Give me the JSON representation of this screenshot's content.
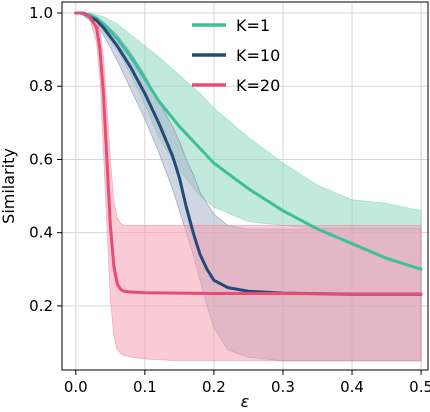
{
  "chart_data": {
    "type": "line",
    "xlabel": "ε",
    "ylabel": "Similarity",
    "xlim": [
      -0.02,
      0.51
    ],
    "ylim": [
      0.025,
      1.03
    ],
    "xticks": [
      0.0,
      0.1,
      0.2,
      0.3,
      0.4,
      0.5
    ],
    "xtick_labels": [
      "0.0",
      "0.1",
      "0.2",
      "0.3",
      "0.4",
      "0.5"
    ],
    "yticks": [
      0.2,
      0.4,
      0.6,
      0.8,
      1.0
    ],
    "ytick_labels": [
      "0.2",
      "0.4",
      "0.6",
      "0.8",
      "1.0"
    ],
    "grid": true,
    "legend_position": "top-center",
    "series": [
      {
        "name": "K=1",
        "color": "#3dbf9a",
        "band_color": "#8fd9bf",
        "x": [
          0.0,
          0.01,
          0.02,
          0.03,
          0.04,
          0.06,
          0.08,
          0.1,
          0.12,
          0.15,
          0.18,
          0.2,
          0.25,
          0.3,
          0.35,
          0.4,
          0.45,
          0.5
        ],
        "y": [
          1.0,
          1.0,
          0.995,
          0.985,
          0.97,
          0.93,
          0.88,
          0.82,
          0.76,
          0.69,
          0.63,
          0.59,
          0.52,
          0.46,
          0.41,
          0.37,
          0.33,
          0.3
        ],
        "upper": [
          1.0,
          1.0,
          1.0,
          0.995,
          0.99,
          0.97,
          0.94,
          0.91,
          0.88,
          0.83,
          0.78,
          0.74,
          0.66,
          0.59,
          0.53,
          0.49,
          0.48,
          0.46
        ],
        "lower": [
          1.0,
          0.995,
          0.985,
          0.97,
          0.95,
          0.9,
          0.83,
          0.75,
          0.66,
          0.57,
          0.5,
          0.47,
          0.43,
          0.42,
          0.41,
          0.41,
          0.41,
          0.41
        ]
      },
      {
        "name": "K=10",
        "color": "#244a7a",
        "band_color": "#a7b3c8",
        "x": [
          0.0,
          0.01,
          0.02,
          0.03,
          0.04,
          0.06,
          0.08,
          0.1,
          0.12,
          0.14,
          0.15,
          0.16,
          0.17,
          0.18,
          0.19,
          0.2,
          0.22,
          0.25,
          0.3,
          0.4,
          0.5
        ],
        "y": [
          1.0,
          1.0,
          0.99,
          0.98,
          0.96,
          0.91,
          0.85,
          0.78,
          0.7,
          0.61,
          0.55,
          0.47,
          0.4,
          0.34,
          0.3,
          0.27,
          0.25,
          0.24,
          0.235,
          0.232,
          0.232
        ],
        "upper": [
          1.0,
          1.0,
          0.995,
          0.99,
          0.975,
          0.94,
          0.89,
          0.83,
          0.76,
          0.69,
          0.65,
          0.6,
          0.56,
          0.51,
          0.48,
          0.45,
          0.42,
          0.41,
          0.41,
          0.41,
          0.41
        ],
        "lower": [
          1.0,
          0.995,
          0.98,
          0.965,
          0.94,
          0.87,
          0.79,
          0.71,
          0.62,
          0.52,
          0.46,
          0.4,
          0.34,
          0.27,
          0.2,
          0.14,
          0.08,
          0.06,
          0.05,
          0.05,
          0.05
        ]
      },
      {
        "name": "K=20",
        "color": "#e84c73",
        "band_color": "#f59fb2",
        "x": [
          0.0,
          0.01,
          0.02,
          0.03,
          0.035,
          0.04,
          0.045,
          0.05,
          0.055,
          0.06,
          0.065,
          0.07,
          0.08,
          0.1,
          0.15,
          0.2,
          0.3,
          0.4,
          0.5
        ],
        "y": [
          1.0,
          1.0,
          0.99,
          0.96,
          0.9,
          0.78,
          0.6,
          0.42,
          0.31,
          0.26,
          0.245,
          0.24,
          0.238,
          0.236,
          0.235,
          0.234,
          0.234,
          0.233,
          0.233
        ],
        "upper": [
          1.0,
          1.0,
          0.995,
          0.98,
          0.95,
          0.88,
          0.75,
          0.6,
          0.49,
          0.44,
          0.425,
          0.42,
          0.42,
          0.42,
          0.42,
          0.42,
          0.42,
          0.42,
          0.42
        ],
        "lower": [
          1.0,
          0.995,
          0.985,
          0.92,
          0.82,
          0.62,
          0.42,
          0.22,
          0.12,
          0.08,
          0.07,
          0.065,
          0.06,
          0.055,
          0.05,
          0.05,
          0.05,
          0.05,
          0.05
        ]
      }
    ]
  }
}
